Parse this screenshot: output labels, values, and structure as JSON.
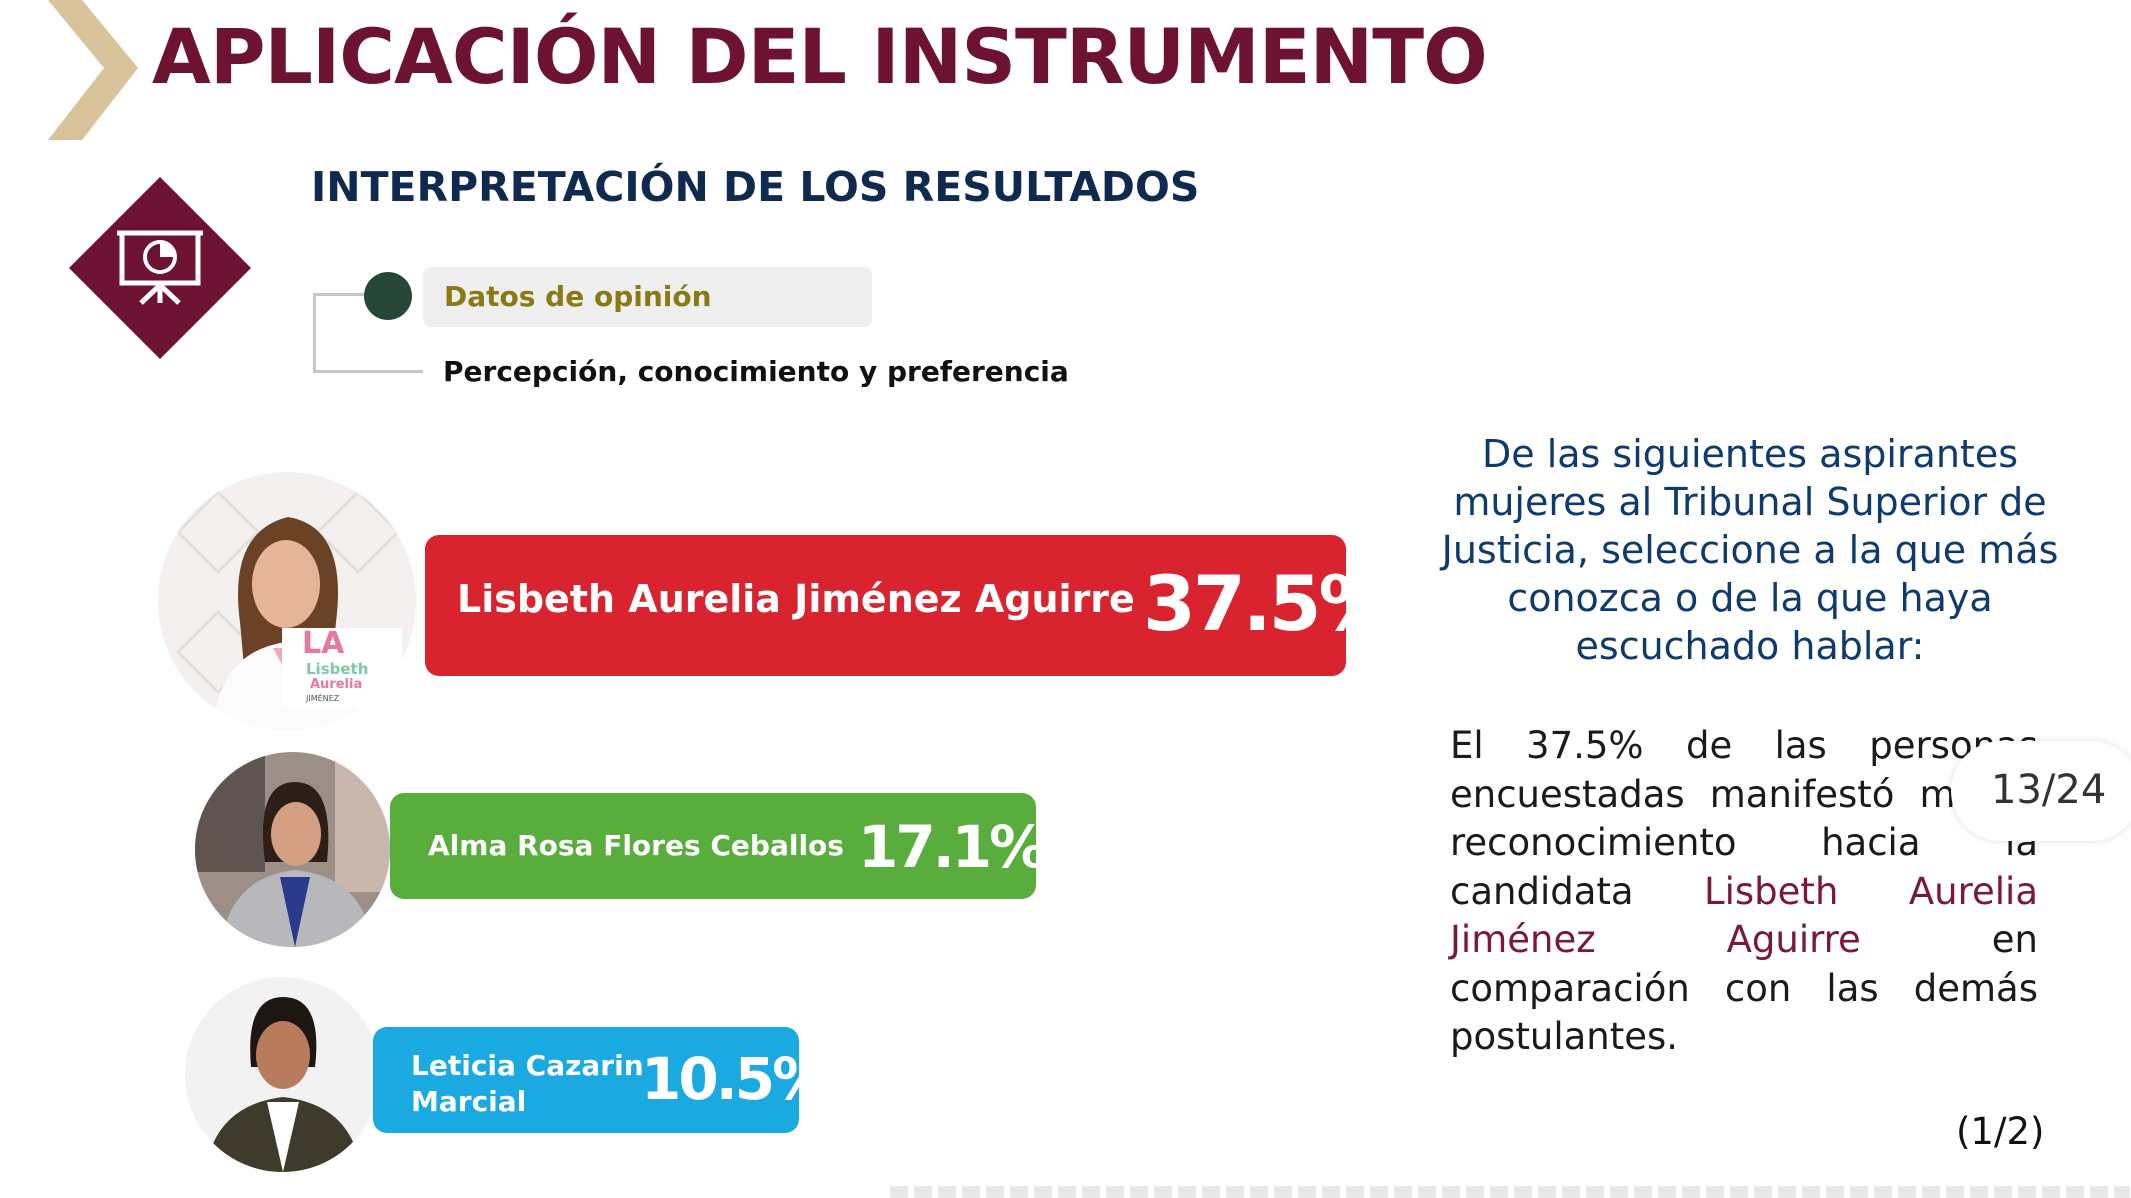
{
  "header": {
    "title": "APLICACIÓN DEL INSTRUMENTO",
    "section_title": "INTERPRETACIÓN DE LOS RESULTADOS"
  },
  "breadcrumb": {
    "category_label": "Datos de opinión",
    "subcategory_label": "Percepción, conocimiento y preferencia"
  },
  "colors": {
    "brand_maroon": "#6d1233",
    "navy": "#0f2a4e",
    "chevron_gold": "#d8c39a",
    "bar_red": "#d9232f",
    "bar_green": "#58ad3c",
    "bar_blue": "#1aa9e0"
  },
  "icons": {
    "chevron": "chevron-right-icon",
    "presentation": "presentation-chart-icon"
  },
  "chart_data": {
    "type": "bar",
    "categories": [
      "Lisbeth Aurelia Jiménez Aguirre",
      "Alma Rosa Flores Ceballos",
      "Leticia Cazarin Marcial"
    ],
    "values": [
      37.5,
      17.1,
      10.5
    ],
    "value_labels": [
      "37.5%",
      "17.1%",
      "10.5%"
    ],
    "unit": "%"
  },
  "candidates": [
    {
      "name": "Lisbeth Aurelia Jiménez Aguirre",
      "name_line1": "Lisbeth Aurelia Jiménez Aguirre",
      "name_line2": "",
      "percent": "37.5%",
      "logo_text": "LA",
      "logo_sub1": "Lisbeth",
      "logo_sub2": "Aurelia",
      "logo_sub3": "JIMÉNEZ"
    },
    {
      "name": "Alma Rosa Flores Ceballos",
      "name_line1": "Alma Rosa Flores Ceballos",
      "name_line2": "",
      "percent": "17.1%"
    },
    {
      "name": "Leticia Cazarin Marcial",
      "name_line1": "Leticia Cazarin",
      "name_line2": "Marcial",
      "percent": "10.5%"
    }
  ],
  "question": "De las siguientes aspirantes mujeres al Tribunal Superior de Justicia, seleccione a la que más conozca o de la que haya escuchado hablar:",
  "result": {
    "text_before": "El 37.5% de las personas encuestadas manifestó mayor reconocimiento hacia la candidata ",
    "highlight": "Lisbeth Aurelia Jiménez Aguirre",
    "text_after": " en comparación con las demás postulantes."
  },
  "pagination": {
    "page_counter": "13/24",
    "page_index": "(1/2)"
  }
}
